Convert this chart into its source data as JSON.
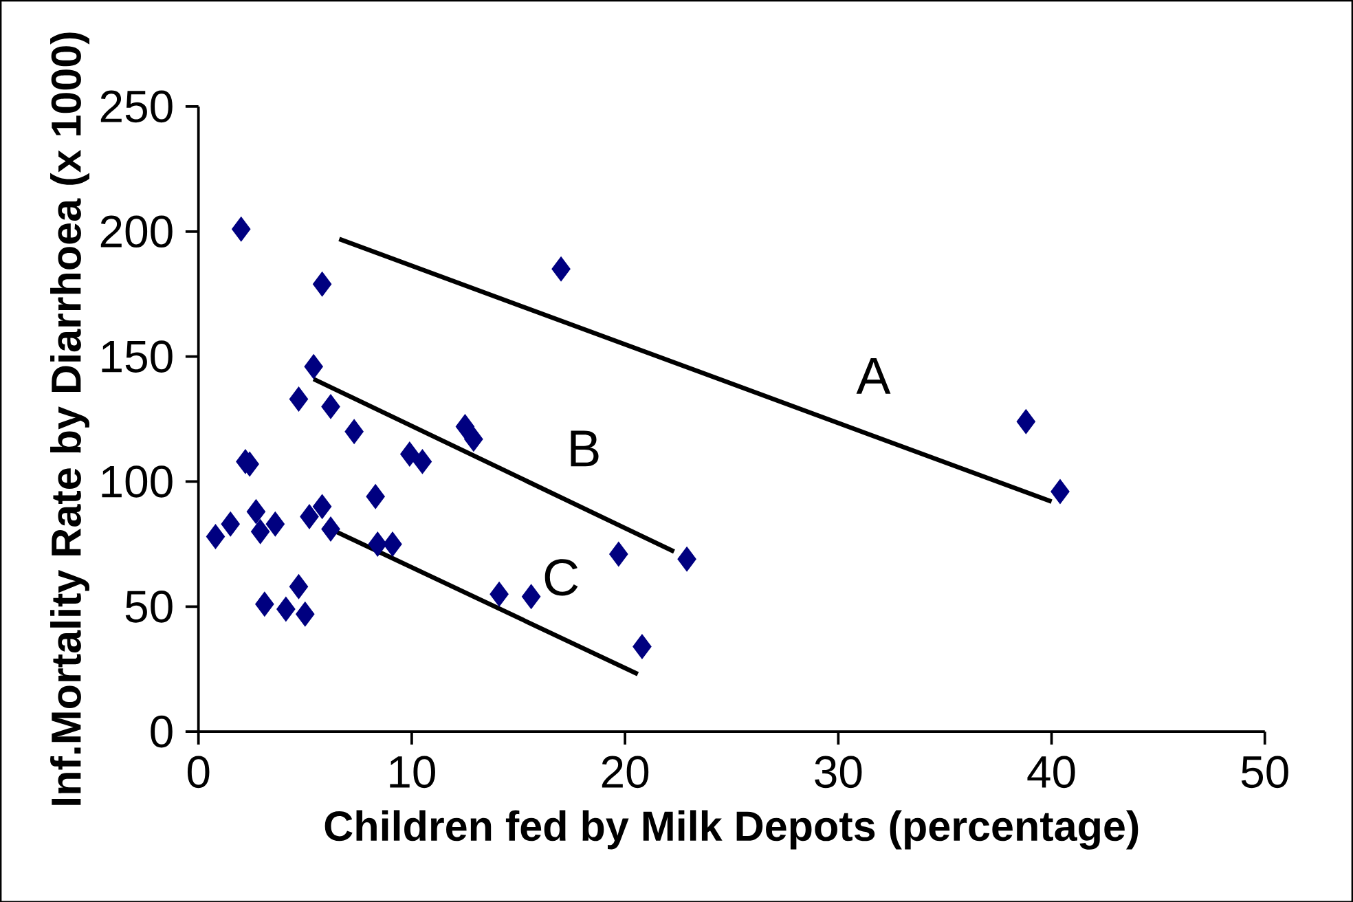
{
  "chart_data": {
    "type": "scatter",
    "xlabel": "Children fed by Milk Depots (percentage)",
    "ylabel": "Inf.Mortality Rate by Diarrhoea (x 1000)",
    "xlim": [
      0,
      50
    ],
    "ylim": [
      0,
      250
    ],
    "xticks": [
      0,
      10,
      20,
      30,
      40,
      50
    ],
    "yticks": [
      0,
      50,
      100,
      150,
      200,
      250
    ],
    "grid": false,
    "marker": "diamond",
    "series": [
      {
        "color": "#000080",
        "x": [
          0.8,
          1.5,
          2.0,
          2.2,
          2.4,
          2.7,
          2.9,
          3.1,
          3.6,
          4.1,
          4.7,
          4.7,
          5.0,
          5.2,
          5.4,
          5.8,
          5.8,
          6.2,
          6.2,
          7.3,
          8.3,
          8.4,
          9.1,
          9.9,
          10.5,
          12.5,
          12.9,
          14.1,
          15.6,
          17.0,
          19.7,
          20.8,
          22.9,
          38.8,
          40.4
        ],
        "values": [
          78,
          83,
          201,
          108,
          107,
          88,
          80,
          51,
          83,
          49,
          133,
          58,
          47,
          86,
          146,
          179,
          90,
          81,
          130,
          120,
          94,
          75,
          75,
          111,
          108,
          122,
          117,
          55,
          54,
          185,
          71,
          34,
          69,
          124,
          96
        ]
      },
      {
        "type": "line",
        "name": "A",
        "color": "#000000",
        "marker": "none",
        "x": [
          6.6,
          40.0
        ],
        "values": [
          197,
          92
        ]
      },
      {
        "type": "line",
        "name": "B",
        "color": "#000000",
        "marker": "none",
        "x": [
          5.4,
          22.3
        ],
        "values": [
          141,
          72
        ]
      },
      {
        "type": "line",
        "name": "C",
        "color": "#000000",
        "marker": "none",
        "x": [
          6.2,
          20.6
        ],
        "values": [
          81,
          23
        ]
      }
    ]
  }
}
